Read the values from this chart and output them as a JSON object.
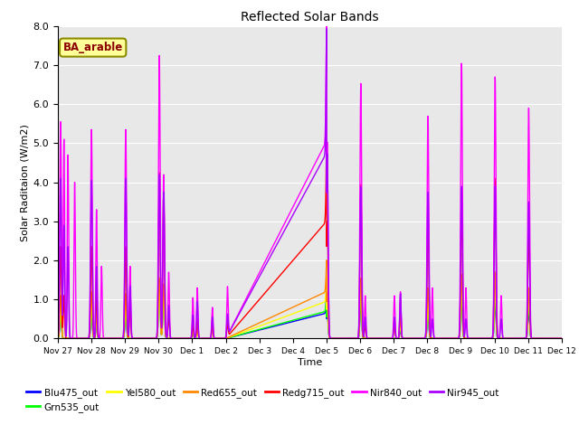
{
  "title": "Reflected Solar Bands",
  "xlabel": "Time",
  "ylabel": "Solar Raditaion (W/m2)",
  "annotation": "BA_arable",
  "ylim": [
    0,
    8.0
  ],
  "yticks": [
    0.0,
    1.0,
    2.0,
    3.0,
    4.0,
    5.0,
    6.0,
    7.0,
    8.0
  ],
  "xtick_labels": [
    "Nov 27",
    "Nov 28",
    "Nov 29",
    "Nov 30",
    "Dec 1",
    "Dec 2",
    "Dec 3",
    "Dec 4",
    "Dec 5",
    "Dec 6",
    "Dec 7",
    "Dec 8",
    "Dec 9",
    "Dec 10",
    "Dec 11",
    "Dec 12"
  ],
  "series_order": [
    "Blu475_out",
    "Grn535_out",
    "Yel580_out",
    "Red655_out",
    "Redg715_out",
    "Nir840_out",
    "Nir945_out"
  ],
  "colors": {
    "Blu475_out": "#0000ff",
    "Grn535_out": "#00ff00",
    "Yel580_out": "#ffff00",
    "Red655_out": "#ff8800",
    "Redg715_out": "#ff0000",
    "Nir840_out": "#ff00ff",
    "Nir945_out": "#aa00ff"
  },
  "background_color": "#e8e8e8",
  "figure_bg": "#ffffff",
  "grid_color": "#ffffff",
  "annotation_color": "#8b0000",
  "annotation_bg": "#ffff99",
  "annotation_edge": "#8b8b00"
}
